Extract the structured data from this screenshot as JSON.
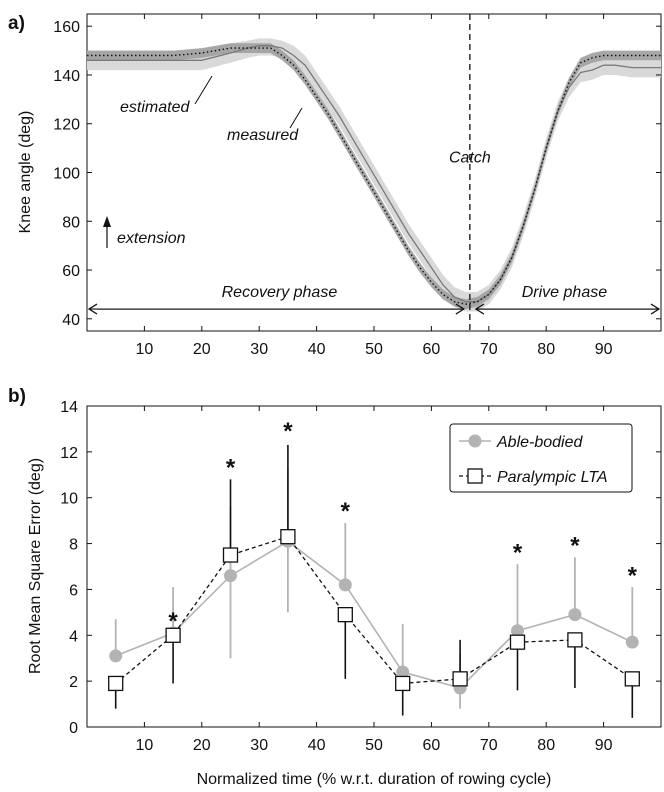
{
  "chart_data": [
    {
      "type": "line",
      "panel_label": "a)",
      "ylabel": "Knee angle (deg)",
      "xlabel": "",
      "xlim": [
        0,
        100
      ],
      "ylim": [
        35,
        165
      ],
      "xticks": [
        10,
        20,
        30,
        40,
        50,
        60,
        70,
        80,
        90
      ],
      "yticks": [
        40,
        60,
        80,
        100,
        120,
        140,
        160
      ],
      "grid": false,
      "x": [
        0,
        5,
        10,
        15,
        20,
        25,
        28,
        30,
        32,
        34,
        36,
        38,
        40,
        42,
        44,
        46,
        48,
        50,
        52,
        54,
        56,
        58,
        60,
        62,
        64,
        66,
        68,
        70,
        72,
        74,
        76,
        78,
        80,
        82,
        84,
        86,
        88,
        90,
        92,
        95,
        100
      ],
      "series": [
        {
          "name": "measured",
          "color": "#7a7a7a",
          "dash": "solid",
          "band_color": "#d9d9d9",
          "values": [
            146,
            146,
            146,
            146,
            146,
            149,
            151,
            152,
            152,
            151,
            148,
            144,
            137,
            130,
            123,
            115,
            107,
            99,
            91,
            83,
            75,
            68,
            61,
            54,
            49,
            47,
            47,
            50,
            56,
            65,
            78,
            93,
            110,
            125,
            135,
            141,
            142,
            144,
            144,
            143,
            143
          ],
          "band": [
            [
              142,
              150
            ],
            [
              142,
              150
            ],
            [
              142,
              150
            ],
            [
              142,
              150
            ],
            [
              142,
              150
            ],
            [
              145,
              153
            ],
            [
              147,
              154
            ],
            [
              148,
              155
            ],
            [
              148,
              155
            ],
            [
              147,
              154
            ],
            [
              144,
              152
            ],
            [
              140,
              148
            ],
            [
              133,
              141
            ],
            [
              126,
              134
            ],
            [
              119,
              127
            ],
            [
              111,
              119
            ],
            [
              103,
              111
            ],
            [
              95,
              103
            ],
            [
              87,
              95
            ],
            [
              79,
              87
            ],
            [
              71,
              79
            ],
            [
              64,
              72
            ],
            [
              57,
              65
            ],
            [
              50,
              58
            ],
            [
              45,
              53
            ],
            [
              43,
              51
            ],
            [
              43,
              51
            ],
            [
              46,
              54
            ],
            [
              52,
              60
            ],
            [
              61,
              69
            ],
            [
              74,
              82
            ],
            [
              89,
              97
            ],
            [
              106,
              114
            ],
            [
              121,
              129
            ],
            [
              131,
              139
            ],
            [
              137,
              145
            ],
            [
              138,
              146
            ],
            [
              140,
              148
            ],
            [
              140,
              148
            ],
            [
              139,
              147
            ],
            [
              139,
              147
            ]
          ]
        },
        {
          "name": "estimated",
          "color": "#111111",
          "dash": "dotted",
          "band_color": "#9e9e9e",
          "values": [
            148,
            148,
            148,
            148,
            149,
            151,
            151,
            151,
            151,
            148,
            144,
            138,
            131,
            124,
            116,
            108,
            100,
            92,
            84,
            76,
            68,
            61,
            55,
            50,
            47,
            46,
            47,
            50,
            56,
            65,
            78,
            93,
            110,
            125,
            137,
            145,
            147,
            148,
            148,
            148,
            148
          ],
          "band": [
            [
              146,
              150
            ],
            [
              146,
              150
            ],
            [
              146,
              150
            ],
            [
              146,
              150
            ],
            [
              147,
              151
            ],
            [
              149,
              153
            ],
            [
              149,
              153
            ],
            [
              149,
              153
            ],
            [
              149,
              153
            ],
            [
              146,
              150
            ],
            [
              142,
              146
            ],
            [
              136,
              140
            ],
            [
              129,
              133
            ],
            [
              122,
              126
            ],
            [
              114,
              118
            ],
            [
              106,
              110
            ],
            [
              98,
              102
            ],
            [
              90,
              94
            ],
            [
              82,
              86
            ],
            [
              74,
              78
            ],
            [
              66,
              70
            ],
            [
              59,
              63
            ],
            [
              53,
              57
            ],
            [
              48,
              52
            ],
            [
              45,
              49
            ],
            [
              44,
              48
            ],
            [
              45,
              49
            ],
            [
              48,
              52
            ],
            [
              54,
              58
            ],
            [
              63,
              67
            ],
            [
              76,
              80
            ],
            [
              91,
              95
            ],
            [
              108,
              112
            ],
            [
              123,
              127
            ],
            [
              135,
              139
            ],
            [
              143,
              147
            ],
            [
              145,
              149
            ],
            [
              146,
              150
            ],
            [
              146,
              150
            ],
            [
              146,
              150
            ],
            [
              146,
              150
            ]
          ]
        }
      ],
      "catch_x": 66.7,
      "annotations": {
        "estimated": "estimated",
        "measured": "measured",
        "catch": "Catch",
        "extension": "extension",
        "recovery_phase": "Recovery phase",
        "drive_phase": "Drive phase"
      },
      "phase_arrow_y": 44
    },
    {
      "type": "line",
      "panel_label": "b)",
      "ylabel": "Root Mean Square Error (deg)",
      "xlabel": "Normalized time (% w.r.t. duration of rowing cycle)",
      "xlim": [
        0,
        100
      ],
      "ylim": [
        0,
        14
      ],
      "xticks": [
        10,
        20,
        30,
        40,
        50,
        60,
        70,
        80,
        90
      ],
      "yticks": [
        0,
        2,
        4,
        6,
        8,
        10,
        12,
        14
      ],
      "grid": false,
      "legend_position": "top-right",
      "x": [
        5,
        15,
        25,
        35,
        45,
        55,
        65,
        75,
        85,
        95
      ],
      "series": [
        {
          "name": "Able-bodied",
          "color": "#b3b3b3",
          "marker": "circle",
          "line": "solid",
          "values": [
            3.1,
            4.1,
            6.6,
            8.1,
            6.2,
            2.4,
            1.7,
            4.2,
            4.9,
            3.7
          ],
          "error_upper": [
            4.7,
            6.1,
            9.6,
            11.3,
            8.9,
            4.5,
            3.2,
            7.1,
            7.4,
            6.1
          ],
          "error_lower": [
            null,
            null,
            3.0,
            5.0,
            null,
            null,
            0.8,
            null,
            null,
            null
          ]
        },
        {
          "name": "Paralympic LTA",
          "color": "#111111",
          "marker": "square",
          "line": "dashed",
          "values": [
            1.9,
            4.0,
            7.5,
            8.3,
            4.9,
            1.9,
            2.1,
            3.7,
            3.8,
            2.1
          ],
          "error_upper": [
            null,
            null,
            10.8,
            12.3,
            null,
            null,
            3.8,
            null,
            null,
            null
          ],
          "error_lower": [
            0.8,
            1.9,
            null,
            null,
            2.1,
            0.5,
            null,
            1.6,
            1.7,
            0.4
          ]
        }
      ],
      "significance_marker": "*",
      "significant_x": [
        15,
        25,
        35,
        45,
        75,
        85,
        95
      ],
      "significance_y": [
        4.7,
        11.4,
        13.0,
        9.5,
        7.7,
        8.0,
        6.7
      ]
    }
  ]
}
